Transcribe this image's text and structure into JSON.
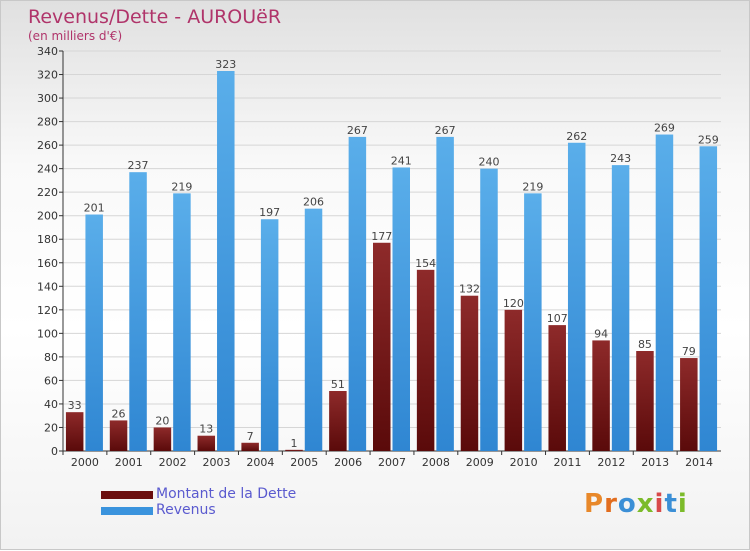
{
  "header": {
    "title": "Revenus/Dette - AUROUëR",
    "subtitle": "(en milliers d'€)"
  },
  "legend": {
    "items": [
      {
        "label": "Montant de la Dette",
        "color": "#6b0e0e"
      },
      {
        "label": "Revenus",
        "color": "#3a93dd"
      }
    ]
  },
  "logo": {
    "text": "Proxiti"
  },
  "colors": {
    "title": "#b0346a",
    "debt": "#7a1c1c",
    "revenue": "#3a93dd",
    "grid": "#d6d6d6",
    "axis": "#333333"
  },
  "chart_data": {
    "type": "bar",
    "title": "Revenus/Dette - AUROUëR",
    "subtitle": "(en milliers d'€)",
    "xlabel": "",
    "ylabel": "",
    "ylim": [
      0,
      340
    ],
    "yticks": [
      0,
      20,
      40,
      60,
      80,
      100,
      120,
      140,
      160,
      180,
      200,
      220,
      240,
      260,
      280,
      300,
      320,
      340
    ],
    "grid": true,
    "legend_position": "bottom-left",
    "categories": [
      "2000",
      "2001",
      "2002",
      "2003",
      "2004",
      "2005",
      "2006",
      "2007",
      "2008",
      "2009",
      "2010",
      "2011",
      "2012",
      "2013",
      "2014"
    ],
    "series": [
      {
        "name": "Montant de la Dette",
        "values": [
          33,
          26,
          20,
          13,
          7,
          1,
          51,
          177,
          154,
          132,
          120,
          107,
          94,
          85,
          79
        ]
      },
      {
        "name": "Revenus",
        "values": [
          201,
          237,
          219,
          323,
          197,
          206,
          267,
          241,
          267,
          240,
          219,
          262,
          243,
          269,
          259
        ]
      }
    ]
  }
}
